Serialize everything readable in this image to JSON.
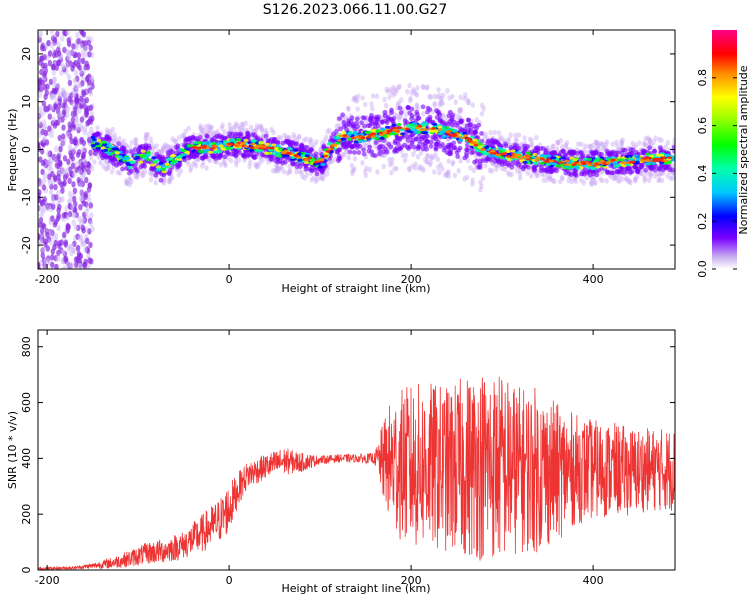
{
  "title": "S126.2023.066.11.00.G27",
  "chart_data": [
    {
      "type": "heatmap",
      "xlabel": "Height of straight line (km)",
      "ylabel": "Frequency (Hz)",
      "xlim": [
        -210,
        490
      ],
      "ylim": [
        -25,
        25
      ],
      "xticks": [
        -200,
        0,
        200,
        400
      ],
      "yticks": [
        -20,
        -10,
        0,
        10,
        20
      ],
      "colorbar": {
        "label": "Normalized spectral amplitude",
        "range": [
          0,
          1
        ],
        "ticks": [
          0.0,
          0.2,
          0.4,
          0.6,
          0.8
        ]
      },
      "ridge": {
        "x": [
          -150,
          -130,
          -110,
          -90,
          -75,
          -60,
          -45,
          -30,
          -10,
          0,
          20,
          40,
          60,
          80,
          95,
          100,
          110,
          125,
          140,
          160,
          180,
          200,
          220,
          240,
          260,
          280,
          300,
          320,
          340,
          360,
          380,
          400,
          420,
          440,
          460,
          490
        ],
        "freq": [
          1.5,
          0,
          -3,
          -1,
          -4,
          -2,
          0,
          0.5,
          0.5,
          1,
          1,
          0.3,
          -0.5,
          -1.5,
          -2.5,
          -3,
          0,
          3,
          2.5,
          3,
          4,
          4.5,
          4.5,
          3.5,
          2.5,
          0,
          -1,
          -1.5,
          -2,
          -2.5,
          -3,
          -3,
          -2.5,
          -2.5,
          -2,
          -2
        ]
      }
    },
    {
      "type": "line",
      "xlabel": "Height of straight line (km)",
      "ylabel": "SNR (10 * v/v)",
      "xlim": [
        -210,
        490
      ],
      "ylim": [
        0,
        860
      ],
      "xticks": [
        -200,
        0,
        200,
        400
      ],
      "yticks": [
        0,
        200,
        400,
        600,
        800
      ],
      "color": "#ee3333",
      "series": [
        {
          "x": [
            -210,
            -170,
            -150,
            -130,
            -110,
            -90,
            -70,
            -50,
            -30,
            -10,
            0,
            10,
            20,
            40,
            60,
            80,
            100,
            120,
            140,
            160,
            170,
            180,
            200,
            220,
            240,
            260,
            280,
            300,
            320,
            340,
            360,
            380,
            400,
            420,
            440,
            460,
            490
          ],
          "mean": [
            5,
            8,
            15,
            25,
            40,
            60,
            70,
            90,
            130,
            180,
            220,
            290,
            340,
            370,
            390,
            385,
            395,
            400,
            400,
            400,
            390,
            380,
            370,
            375,
            360,
            370,
            380,
            370,
            360,
            360,
            350,
            360,
            360,
            360,
            355,
            360,
            360
          ],
          "amplitude": [
            5,
            5,
            10,
            20,
            30,
            40,
            45,
            50,
            70,
            80,
            90,
            60,
            50,
            45,
            50,
            35,
            15,
            15,
            15,
            20,
            150,
            250,
            300,
            300,
            300,
            330,
            350,
            340,
            300,
            300,
            250,
            200,
            180,
            170,
            160,
            150,
            150
          ]
        }
      ]
    }
  ]
}
